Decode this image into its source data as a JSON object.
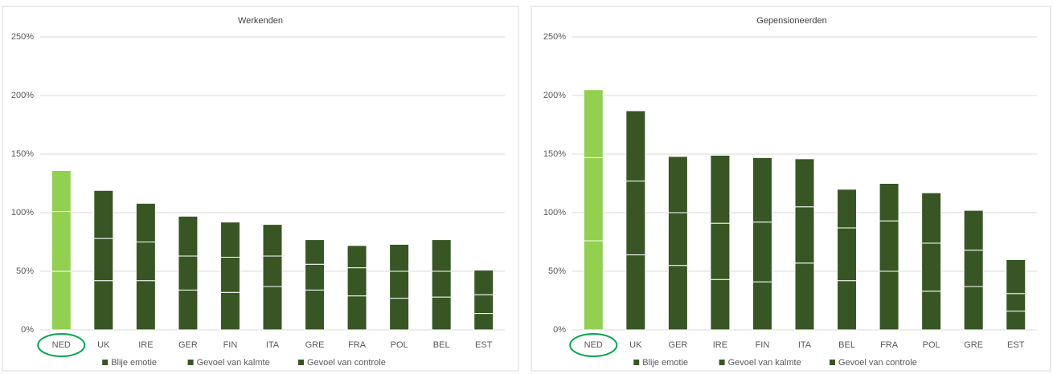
{
  "chart_data": [
    {
      "type": "stacked_bar",
      "title": "Werkenden",
      "categories": [
        "NED",
        "UK",
        "IRE",
        "GER",
        "FIN",
        "ITA",
        "GRE",
        "FRA",
        "POL",
        "BEL",
        "EST"
      ],
      "series": [
        {
          "name": "Blije emotie",
          "color": "#375623",
          "values": [
            50,
            42,
            42,
            34,
            32,
            37,
            34,
            29,
            27,
            28,
            14
          ]
        },
        {
          "name": "Gevoel van kalmte",
          "color": "#375623",
          "values": [
            51,
            36,
            33,
            29,
            30,
            26,
            22,
            24,
            23,
            22,
            16
          ]
        },
        {
          "name": "Gevoel van controle",
          "color": "#375623",
          "values": [
            35,
            41,
            33,
            34,
            30,
            27,
            21,
            19,
            23,
            27,
            21
          ]
        }
      ],
      "highlight": {
        "index": 0,
        "color": "#92d050"
      },
      "ylim": [
        0,
        250
      ],
      "yticks": [
        {
          "value": 0,
          "label": "0%"
        },
        {
          "value": 50,
          "label": "50%"
        },
        {
          "value": 100,
          "label": "100%"
        },
        {
          "value": 150,
          "label": "150%"
        },
        {
          "value": 200,
          "label": "200%"
        },
        {
          "value": 250,
          "label": "250%"
        }
      ],
      "grid": true,
      "legend": "bottom"
    },
    {
      "type": "stacked_bar",
      "title": "Gepensioneerden",
      "categories": [
        "NED",
        "UK",
        "GER",
        "IRE",
        "FIN",
        "ITA",
        "BEL",
        "FRA",
        "POL",
        "GRE",
        "EST"
      ],
      "series": [
        {
          "name": "Blije emotie",
          "color": "#375623",
          "values": [
            76,
            64,
            55,
            43,
            41,
            57,
            42,
            50,
            33,
            37,
            16
          ]
        },
        {
          "name": "Gevoel van kalmte",
          "color": "#375623",
          "values": [
            71,
            63,
            45,
            48,
            51,
            48,
            45,
            43,
            41,
            31,
            15
          ]
        },
        {
          "name": "Gevoel van controle",
          "color": "#375623",
          "values": [
            58,
            60,
            48,
            58,
            55,
            41,
            33,
            32,
            43,
            34,
            29
          ]
        }
      ],
      "highlight": {
        "index": 0,
        "color": "#92d050"
      },
      "ylim": [
        0,
        250
      ],
      "yticks": [
        {
          "value": 0,
          "label": "0%"
        },
        {
          "value": 50,
          "label": "50%"
        },
        {
          "value": 100,
          "label": "100%"
        },
        {
          "value": 150,
          "label": "150%"
        },
        {
          "value": 200,
          "label": "200%"
        },
        {
          "value": 250,
          "label": "250%"
        }
      ],
      "grid": true,
      "legend": "bottom"
    }
  ]
}
